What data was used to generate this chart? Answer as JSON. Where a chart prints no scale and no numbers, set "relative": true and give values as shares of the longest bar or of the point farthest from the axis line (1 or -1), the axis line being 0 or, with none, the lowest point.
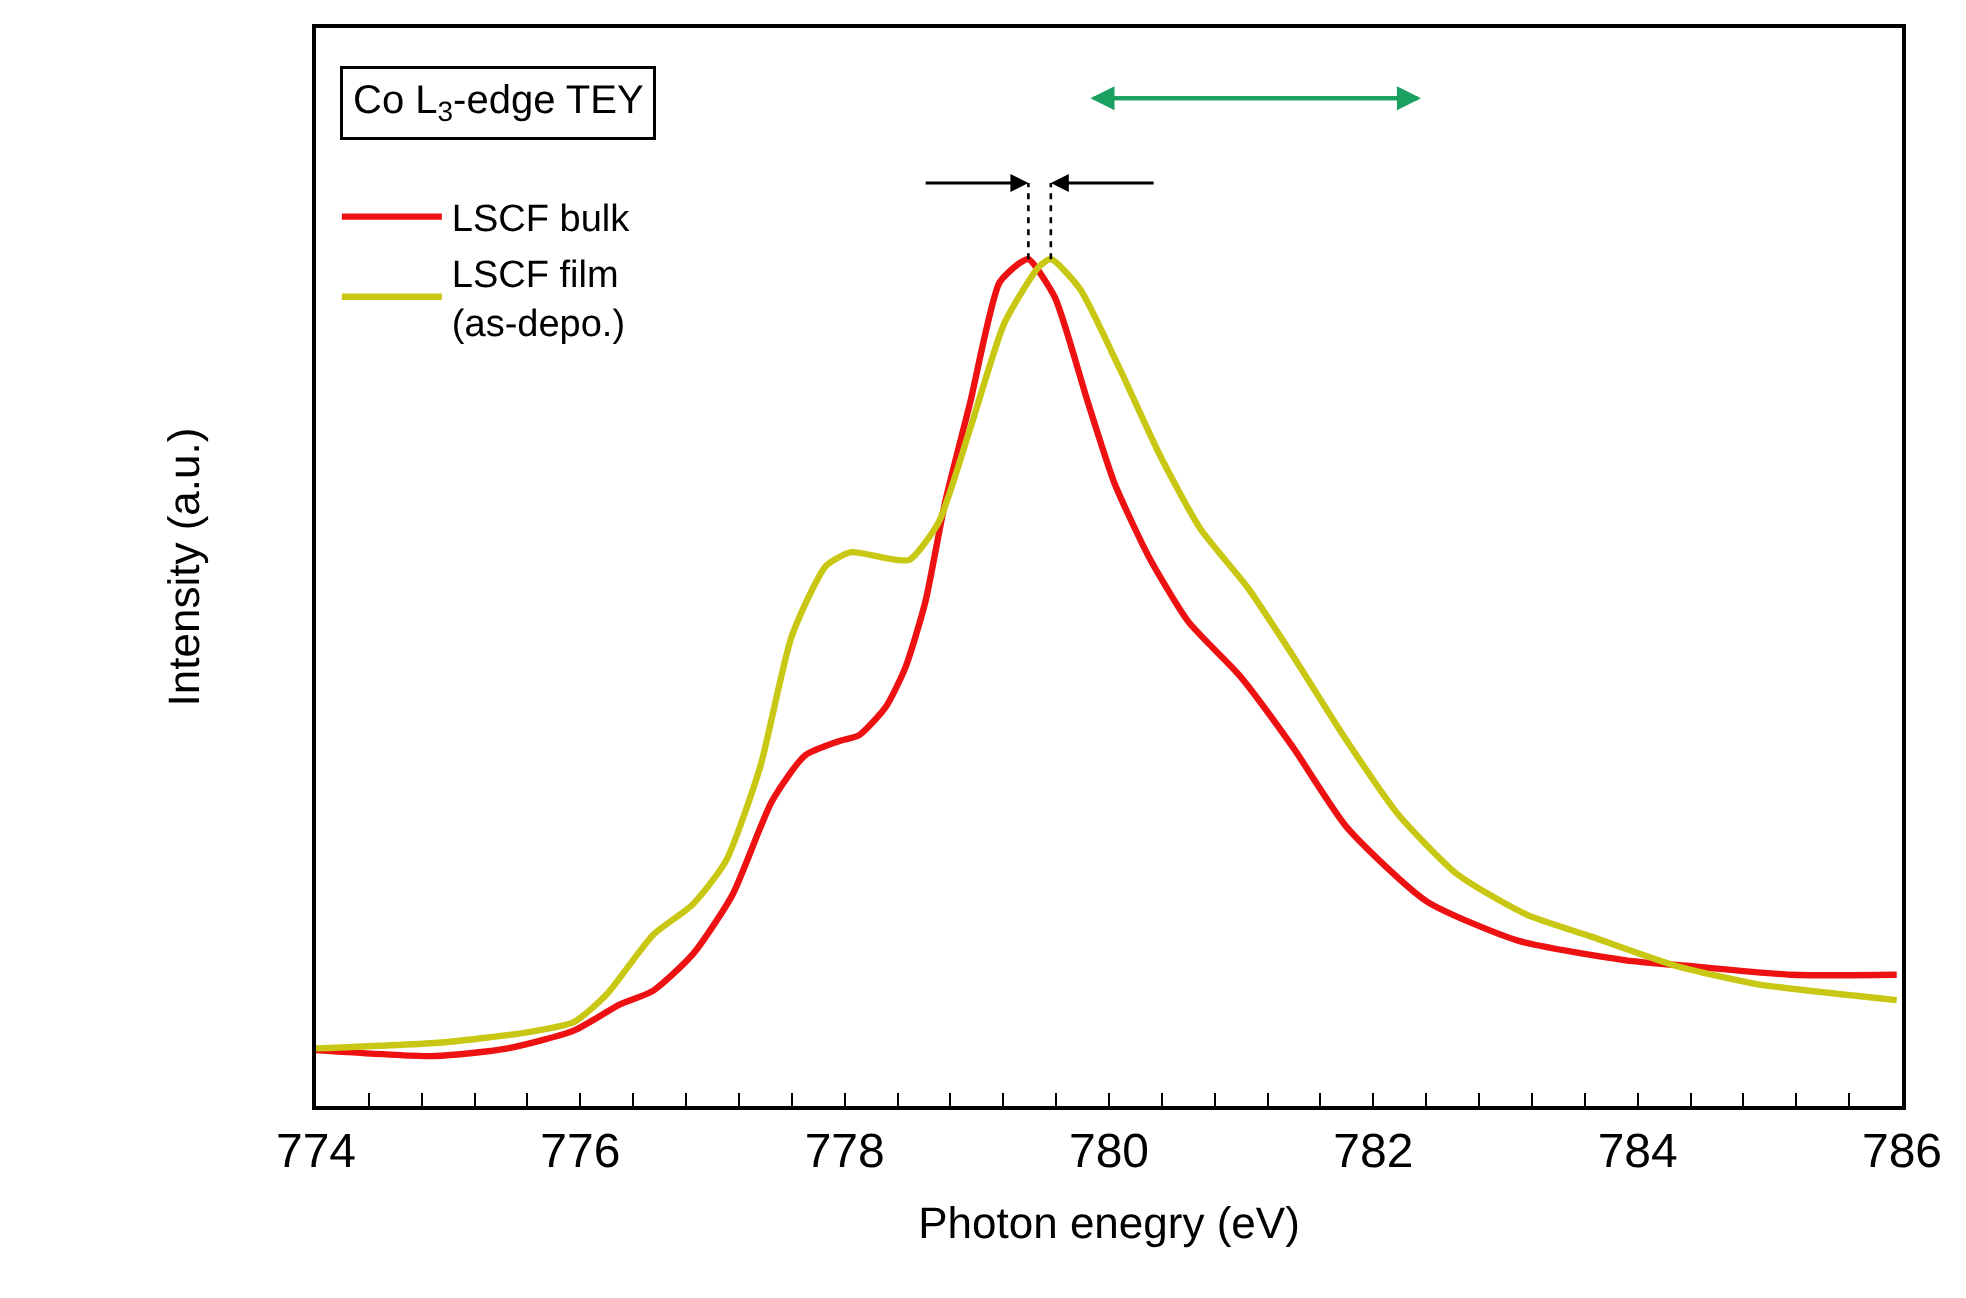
{
  "chart_data": {
    "type": "line",
    "relative": true,
    "xlabel": "Photon enegry (eV)",
    "ylabel": "Intensity (a.u.)",
    "annotations": [
      "Co L$_{3}$-edge TEY"
    ],
    "xlim": [
      774,
      786
    ],
    "xticks": [
      774,
      {
        "value": 774.4,
        "label": null
      },
      {
        "value": 774.8,
        "label": null
      },
      {
        "value": 775.2,
        "label": null
      },
      {
        "value": 775.6,
        "label": null
      },
      776,
      {
        "value": 776.4,
        "label": null
      },
      {
        "value": 776.8,
        "label": null
      },
      {
        "value": 777.2,
        "label": null
      },
      {
        "value": 777.6,
        "label": null
      },
      778,
      {
        "value": 778.4,
        "label": null
      },
      {
        "value": 778.8,
        "label": null
      },
      {
        "value": 779.2,
        "label": null
      },
      {
        "value": 779.6,
        "label": null
      },
      780,
      {
        "value": 780.4,
        "label": null
      },
      {
        "value": 780.8,
        "label": null
      },
      {
        "value": 781.2,
        "label": null
      },
      {
        "value": 781.6,
        "label": null
      },
      782,
      {
        "value": 782.4,
        "label": null
      },
      {
        "value": 782.8,
        "label": null
      },
      {
        "value": 783.2,
        "label": null
      },
      {
        "value": 783.6,
        "label": null
      },
      784,
      {
        "value": 784.4,
        "label": null
      },
      {
        "value": 784.8,
        "label": null
      },
      {
        "value": 785.2,
        "label": null
      },
      {
        "value": 785.6,
        "label": null
      },
      786
    ],
    "legend": "top left",
    "marker": "none",
    "line_style": "solid",
    "series": [
      {
        "name": "LSCF bulk",
        "color": "#ee1111",
        "x": [
          774.0,
          774.9,
          775.45,
          775.95,
          776.3,
          776.55,
          776.85,
          777.15,
          777.45,
          777.7,
          777.96,
          778.11,
          778.31,
          778.46,
          778.61,
          778.76,
          778.95,
          779.17,
          779.32,
          779.39,
          779.59,
          779.84,
          780.04,
          780.3,
          780.6,
          780.99,
          781.39,
          781.8,
          782.4,
          783.1,
          783.91,
          784.41,
          785.16,
          785.96
        ],
        "values": [
          0.066,
          0.059,
          0.068,
          0.089,
          0.12,
          0.136,
          0.179,
          0.249,
          0.36,
          0.414,
          0.431,
          0.438,
          0.471,
          0.518,
          0.595,
          0.713,
          0.831,
          0.972,
          0.995,
          1.0,
          0.955,
          0.831,
          0.736,
          0.649,
          0.572,
          0.508,
          0.424,
          0.329,
          0.242,
          0.195,
          0.172,
          0.165,
          0.155,
          0.155
        ]
      },
      {
        "name": "LSCF film\n(as-depo.)",
        "color": "#c8c814",
        "x": [
          774.0,
          774.95,
          775.6,
          775.95,
          776.2,
          776.55,
          776.85,
          777.1,
          777.36,
          777.6,
          777.86,
          778.05,
          778.31,
          778.49,
          778.71,
          778.95,
          779.21,
          779.47,
          779.56,
          779.78,
          780.08,
          780.39,
          780.69,
          781.05,
          781.39,
          781.8,
          782.19,
          782.64,
          783.16,
          783.65,
          784.3,
          784.9,
          785.96
        ],
        "values": [
          0.068,
          0.075,
          0.087,
          0.099,
          0.132,
          0.202,
          0.238,
          0.289,
          0.4,
          0.555,
          0.638,
          0.654,
          0.647,
          0.645,
          0.689,
          0.8,
          0.925,
          0.991,
          1.0,
          0.965,
          0.871,
          0.767,
          0.682,
          0.612,
          0.532,
          0.431,
          0.344,
          0.273,
          0.226,
          0.2,
          0.165,
          0.144,
          0.125
        ]
      }
    ]
  }
}
